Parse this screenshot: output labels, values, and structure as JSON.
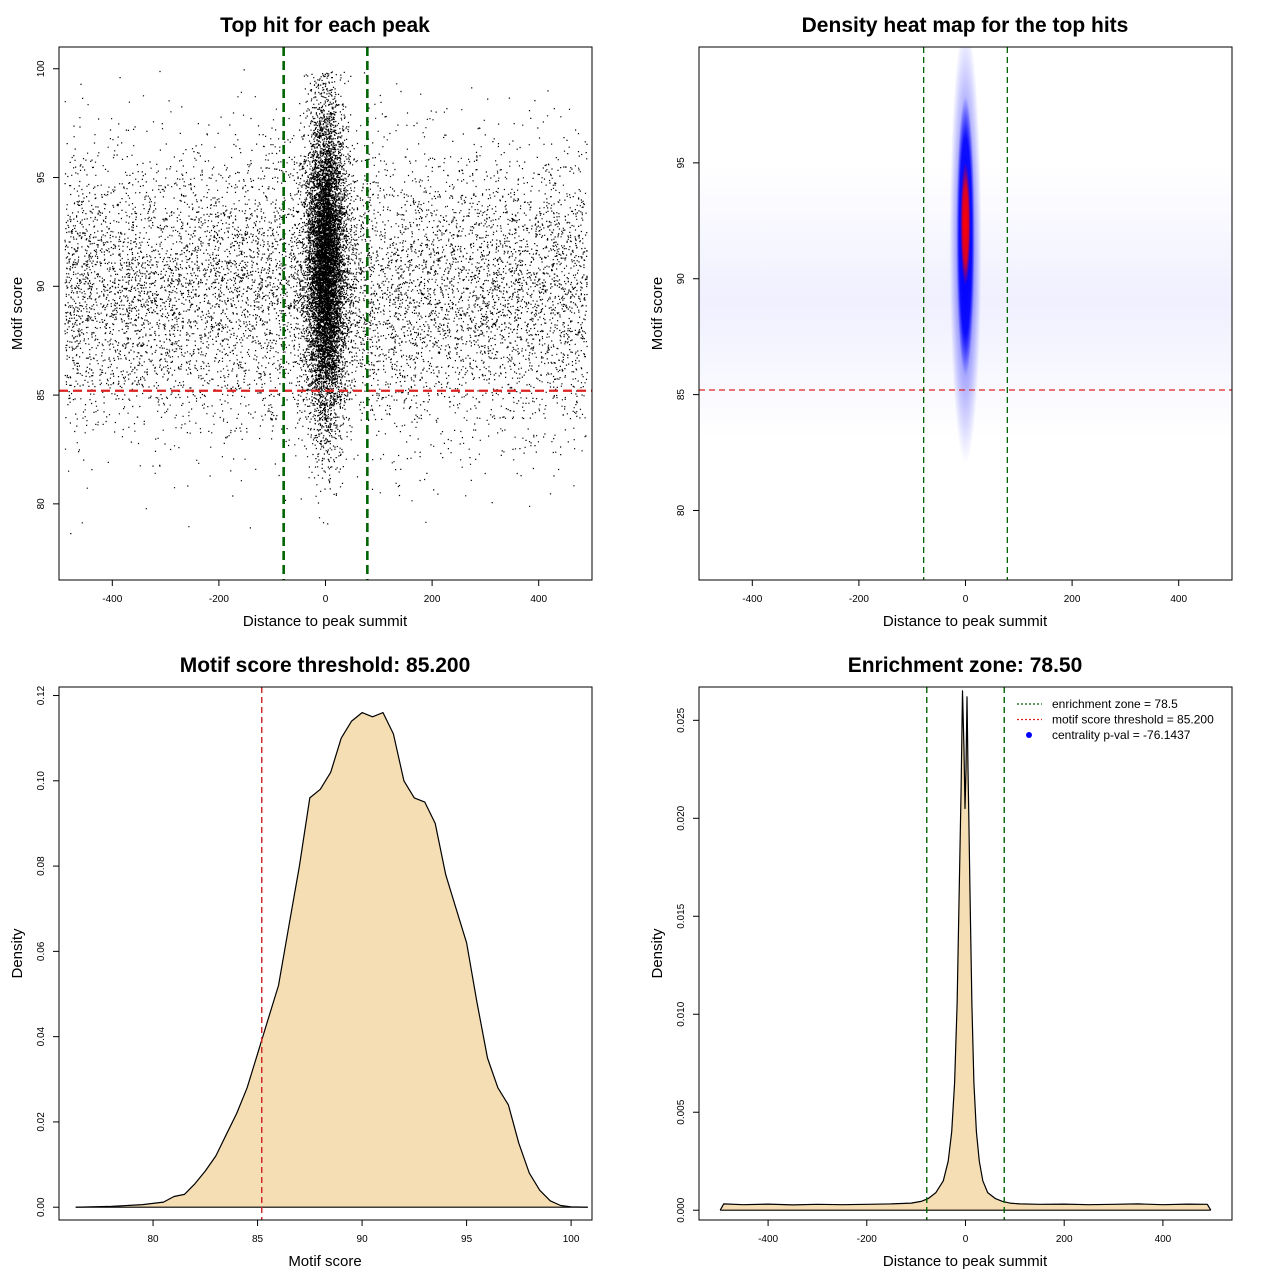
{
  "chart_data": [
    {
      "id": "scatter",
      "type": "scatter",
      "title": "Top hit for each peak",
      "xlabel": "Distance to peak summit",
      "ylabel": "Motif score",
      "xlim": [
        -500,
        500
      ],
      "ylim": [
        76.5,
        101
      ],
      "xticks": [
        "-400",
        "-200",
        "0",
        "200",
        "400"
      ],
      "yticks": [
        "80",
        "85",
        "90",
        "95",
        "100"
      ],
      "threshold_y": 85.2,
      "zone_x": [
        -78.5,
        78.5
      ],
      "background_points": {
        "x_range": [
          -490,
          490
        ],
        "y_center": 89.8,
        "y_sd": 3.2
      },
      "central_points": {
        "x_center": 0,
        "x_sd": 18,
        "y_center": 91,
        "y_sd": 3.5
      },
      "colors": {
        "points": "#000000",
        "threshold": "#dd2222",
        "zone": "#006400"
      }
    },
    {
      "id": "heatmap",
      "type": "heatmap",
      "title": "Density heat map for the top hits",
      "xlabel": "Distance to peak summit",
      "ylabel": "Motif score",
      "xlim": [
        -500,
        500
      ],
      "ylim": [
        77,
        100
      ],
      "xticks": [
        "-400",
        "-200",
        "0",
        "200",
        "400"
      ],
      "yticks": [
        "80",
        "85",
        "90",
        "95"
      ],
      "threshold_y": 85.2,
      "zone_x": [
        -78.5,
        78.5
      ],
      "hotspot": {
        "x": 0,
        "y": 91.5
      },
      "colors": {
        "low": "#ffffff",
        "mid": "#0000ff",
        "high": "#ff0000",
        "threshold": "#dd2222",
        "zone": "#006400"
      }
    },
    {
      "id": "score_density",
      "type": "area",
      "title": "Motif score threshold: 85.200",
      "xlabel": "Motif score",
      "ylabel": "Density",
      "xlim": [
        75.5,
        101
      ],
      "ylim": [
        -0.003,
        0.122
      ],
      "xticks": [
        "80",
        "85",
        "90",
        "95",
        "100"
      ],
      "yticks": [
        "0.00",
        "0.02",
        "0.04",
        "0.06",
        "0.08",
        "0.10",
        "0.12"
      ],
      "threshold_x": 85.2,
      "x": [
        76.3,
        78,
        79.5,
        80.5,
        81,
        81.5,
        82,
        82.5,
        83,
        83.5,
        84,
        84.5,
        85,
        85.5,
        86,
        86.5,
        87,
        87.5,
        88,
        88.5,
        89,
        89.5,
        90,
        90.5,
        91,
        91.5,
        92,
        92.5,
        93,
        93.5,
        94,
        94.5,
        95,
        95.5,
        96,
        96.5,
        97,
        97.5,
        98,
        98.5,
        99,
        99.5,
        100,
        100.8
      ],
      "y": [
        0,
        0.0002,
        0.0006,
        0.0012,
        0.0025,
        0.003,
        0.0055,
        0.0085,
        0.012,
        0.017,
        0.022,
        0.028,
        0.036,
        0.044,
        0.052,
        0.066,
        0.08,
        0.096,
        0.098,
        0.102,
        0.11,
        0.114,
        0.116,
        0.115,
        0.116,
        0.111,
        0.1,
        0.096,
        0.095,
        0.09,
        0.078,
        0.07,
        0.062,
        0.048,
        0.035,
        0.028,
        0.024,
        0.015,
        0.008,
        0.004,
        0.0015,
        0.0004,
        0.0001,
        0
      ],
      "colors": {
        "fill": "#f5deb3",
        "line": "#000000",
        "threshold": "#cc2222"
      }
    },
    {
      "id": "distance_density",
      "type": "area",
      "title": "Enrichment zone: 78.50",
      "xlabel": "Distance to peak summit",
      "ylabel": "Density",
      "xlim": [
        -540,
        540
      ],
      "ylim": [
        -0.0005,
        0.0267
      ],
      "xticks": [
        "-400",
        "-200",
        "0",
        "200",
        "400"
      ],
      "yticks": [
        "0.000",
        "0.005",
        "0.010",
        "0.015",
        "0.020",
        "0.025"
      ],
      "zone_x": [
        -78.5,
        78.5
      ],
      "x": [
        -497,
        -490,
        -450,
        -400,
        -350,
        -300,
        -250,
        -200,
        -150,
        -110,
        -90,
        -75,
        -60,
        -45,
        -35,
        -28,
        -22,
        -17,
        -13,
        -9,
        -6,
        -3,
        -1,
        0,
        1,
        3,
        5,
        7,
        9,
        13,
        17,
        22,
        28,
        35,
        45,
        60,
        75,
        90,
        110,
        150,
        200,
        250,
        300,
        350,
        400,
        450,
        490,
        497
      ],
      "y": [
        0,
        0.00032,
        0.00028,
        0.00031,
        0.00027,
        0.0003,
        0.00028,
        0.0003,
        0.00032,
        0.00036,
        0.00045,
        0.0006,
        0.0009,
        0.0015,
        0.0025,
        0.004,
        0.0065,
        0.0105,
        0.016,
        0.0215,
        0.0265,
        0.0235,
        0.0205,
        0.0215,
        0.0225,
        0.0262,
        0.0225,
        0.0195,
        0.0165,
        0.0105,
        0.0065,
        0.004,
        0.0025,
        0.0015,
        0.0009,
        0.0006,
        0.00045,
        0.00036,
        0.00032,
        0.0003,
        0.00031,
        0.00028,
        0.0003,
        0.00032,
        0.00028,
        0.00031,
        0.0003,
        0
      ],
      "legend": {
        "position": "top-right",
        "entries": [
          {
            "label": "enrichment zone = 78.5",
            "style": "dotted-line",
            "color": "#006400"
          },
          {
            "label": "motif score threshold = 85.200",
            "style": "dotted-line",
            "color": "#dd2222"
          },
          {
            "label": "centrality p-val = -76.1437",
            "style": "point",
            "color": "#0000ff"
          }
        ]
      },
      "colors": {
        "fill": "#f5deb3",
        "line": "#000000",
        "zone": "#006400"
      }
    }
  ]
}
